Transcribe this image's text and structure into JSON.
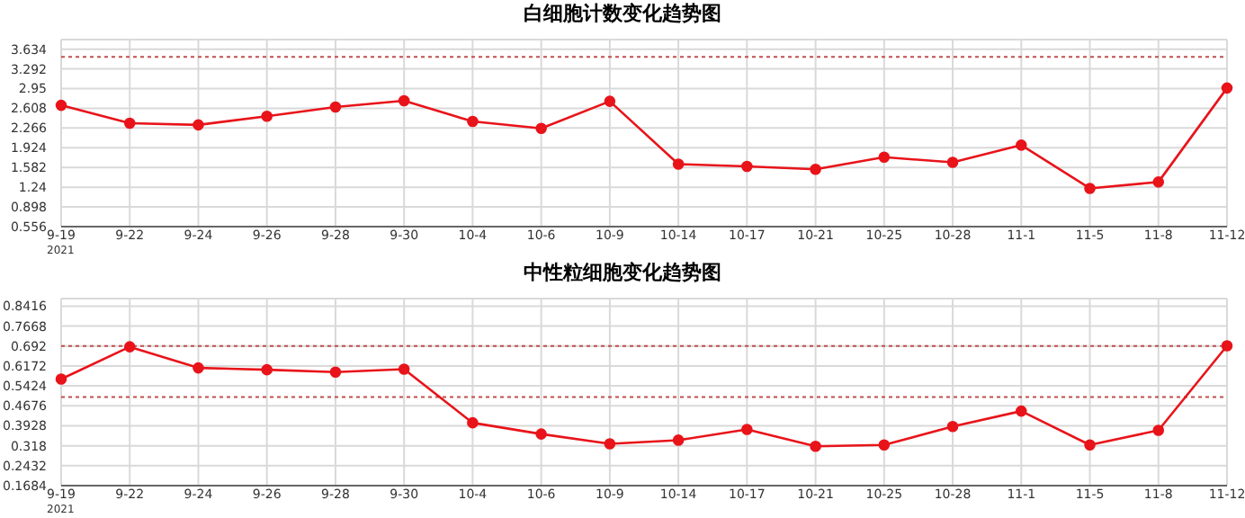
{
  "chart_data": [
    {
      "type": "line",
      "title": "白细胞计数变化趋势图",
      "categories": [
        "9-19",
        "9-22",
        "9-24",
        "9-26",
        "9-28",
        "9-30",
        "10-4",
        "10-6",
        "10-9",
        "10-14",
        "10-17",
        "10-21",
        "10-25",
        "10-28",
        "11-1",
        "11-5",
        "11-8",
        "11-12"
      ],
      "series": [
        {
          "color": "#e8141a",
          "values": [
            2.66,
            2.35,
            2.32,
            2.47,
            2.63,
            2.74,
            2.38,
            2.26,
            2.73,
            1.64,
            1.6,
            1.55,
            1.76,
            1.67,
            1.97,
            1.22,
            1.33,
            2.96
          ]
        }
      ],
      "ylim": [
        0.556,
        3.8
      ],
      "yticks": [
        0.556,
        0.898,
        1.24,
        1.582,
        1.924,
        2.266,
        2.608,
        2.95,
        3.292,
        3.634
      ],
      "grid": true,
      "marker": "circle",
      "line_style": "solid",
      "legend": false,
      "ref_lines": [
        {
          "axis": "y",
          "value": 3.5,
          "color": "#c0504d",
          "line_style": "dotted"
        }
      ],
      "annotations": [
        "2021"
      ]
    },
    {
      "type": "line",
      "title": "中性粒细胞变化趋势图",
      "categories": [
        "9-19",
        "9-22",
        "9-24",
        "9-26",
        "9-28",
        "9-30",
        "10-4",
        "10-6",
        "10-9",
        "10-14",
        "10-17",
        "10-21",
        "10-25",
        "10-28",
        "11-1",
        "11-5",
        "11-8",
        "11-12"
      ],
      "series": [
        {
          "color": "#e8141a",
          "values": [
            0.568,
            0.689,
            0.61,
            0.603,
            0.594,
            0.605,
            0.404,
            0.362,
            0.325,
            0.339,
            0.379,
            0.316,
            0.321,
            0.39,
            0.448,
            0.321,
            0.376,
            0.693
          ]
        }
      ],
      "ylim": [
        0.1684,
        0.87
      ],
      "yticks": [
        0.1684,
        0.2432,
        0.318,
        0.3928,
        0.4676,
        0.5424,
        0.6172,
        0.692,
        0.7668,
        0.8416
      ],
      "grid": true,
      "marker": "circle",
      "line_style": "solid",
      "legend": false,
      "ref_lines": [
        {
          "axis": "y",
          "value": 0.692,
          "color": "#c0504d",
          "line_style": "dotted"
        },
        {
          "axis": "y",
          "value": 0.501,
          "color": "#c0504d",
          "line_style": "dotted"
        }
      ],
      "annotations": [
        "2021"
      ]
    }
  ]
}
